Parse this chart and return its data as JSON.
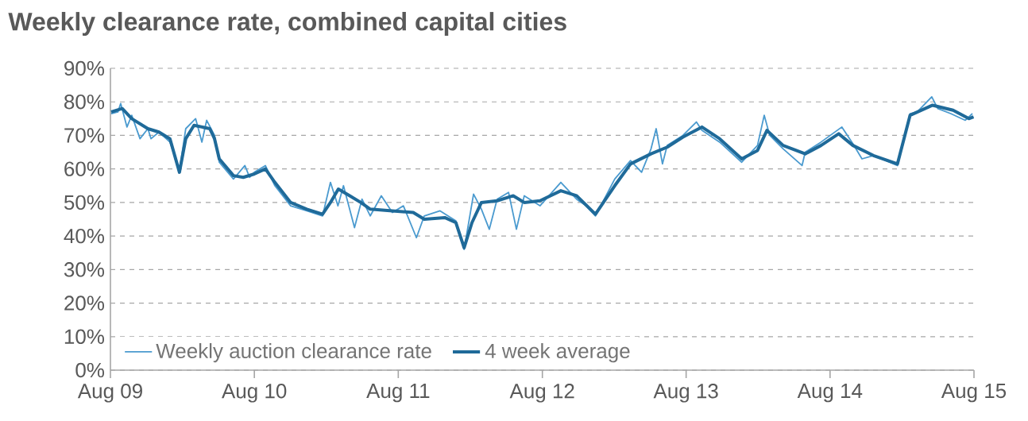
{
  "chart_data": {
    "type": "line",
    "title": "Weekly clearance rate, combined capital cities",
    "xlim": [
      "2009-08-01",
      "2015-08-01"
    ],
    "xticks": [
      {
        "value": "2009-08-01",
        "label": "Aug 09"
      },
      {
        "value": "2010-08-01",
        "label": "Aug 10"
      },
      {
        "value": "2011-08-01",
        "label": "Aug 11"
      },
      {
        "value": "2012-08-01",
        "label": "Aug 12"
      },
      {
        "value": "2013-08-01",
        "label": "Aug 13"
      },
      {
        "value": "2014-08-01",
        "label": "Aug 14"
      },
      {
        "value": "2015-08-01",
        "label": "Aug 15"
      }
    ],
    "ylim": [
      0,
      90
    ],
    "yticks": [
      {
        "value": 0,
        "label": "0%"
      },
      {
        "value": 10,
        "label": "10%"
      },
      {
        "value": 20,
        "label": "20%"
      },
      {
        "value": 30,
        "label": "30%"
      },
      {
        "value": 40,
        "label": "40%"
      },
      {
        "value": 50,
        "label": "50%"
      },
      {
        "value": 60,
        "label": "60%"
      },
      {
        "value": 70,
        "label": "70%"
      },
      {
        "value": 80,
        "label": "80%"
      },
      {
        "value": 90,
        "label": "90%"
      }
    ],
    "grid": "y",
    "legend": "bottom left",
    "line_style": "solid",
    "series": [
      {
        "name": "Weekly auction clearance rate",
        "color": "#4a9acf",
        "x": [
          "2009-08-03",
          "2009-08-20",
          "2009-08-27",
          "2009-09-12",
          "2009-09-24",
          "2009-10-15",
          "2009-11-04",
          "2009-11-12",
          "2009-12-02",
          "2009-12-30",
          "2010-01-23",
          "2010-02-08",
          "2010-03-05",
          "2010-03-21",
          "2010-04-02",
          "2010-04-22",
          "2010-05-04",
          "2010-06-09",
          "2010-07-08",
          "2010-07-20",
          "2010-08-01",
          "2010-08-29",
          "2010-09-22",
          "2010-11-01",
          "2010-12-12",
          "2011-01-21",
          "2011-02-10",
          "2011-03-01",
          "2011-03-15",
          "2011-04-12",
          "2011-05-01",
          "2011-05-22",
          "2011-06-19",
          "2011-07-17",
          "2011-08-14",
          "2011-09-16",
          "2011-10-06",
          "2011-11-15",
          "2011-12-25",
          "2012-01-15",
          "2012-02-08",
          "2012-02-28",
          "2012-03-19",
          "2012-04-08",
          "2012-05-07",
          "2012-05-27",
          "2012-06-16",
          "2012-07-26",
          "2012-09-17",
          "2012-10-27",
          "2012-11-20",
          "2012-12-14",
          "2013-02-01",
          "2013-03-13",
          "2013-04-10",
          "2013-05-04",
          "2013-05-17",
          "2013-06-02",
          "2013-06-14",
          "2013-07-24",
          "2013-08-27",
          "2013-09-10",
          "2013-10-25",
          "2013-12-20",
          "2014-01-29",
          "2014-02-15",
          "2014-03-01",
          "2014-04-04",
          "2014-05-22",
          "2014-05-30",
          "2014-07-09",
          "2014-08-31",
          "2014-09-28",
          "2014-10-21",
          "2014-11-19",
          "2015-01-19",
          "2015-02-20",
          "2015-03-10",
          "2015-04-16",
          "2015-05-01",
          "2015-06-03",
          "2015-07-10",
          "2015-07-28"
        ],
        "values": [
          76.5,
          77,
          79.5,
          72.5,
          76,
          69,
          72,
          69,
          71,
          68,
          59.5,
          72,
          75,
          68,
          74.5,
          70,
          62,
          57,
          61,
          57.5,
          59,
          61,
          55,
          49,
          47.5,
          46,
          56,
          49,
          55,
          42.5,
          51,
          46,
          52,
          47,
          49,
          39.5,
          46,
          47.5,
          44.5,
          36,
          52.5,
          48,
          42,
          51,
          53,
          42,
          52,
          49,
          56,
          51,
          49,
          46,
          57,
          62.5,
          59,
          66,
          72,
          61.5,
          67,
          70,
          74,
          71.5,
          68,
          62,
          67,
          76,
          70,
          66,
          61,
          65,
          68,
          72.5,
          67.5,
          63,
          64,
          61,
          76.5,
          77,
          81.5,
          78,
          76.5,
          74.5,
          76.5
        ]
      },
      {
        "name": "4 week average",
        "color": "#1f6a99",
        "x": [
          "2009-08-03",
          "2009-08-31",
          "2009-09-24",
          "2009-11-04",
          "2009-12-02",
          "2009-12-30",
          "2010-01-23",
          "2010-02-08",
          "2010-03-01",
          "2010-04-10",
          "2010-04-22",
          "2010-05-04",
          "2010-06-09",
          "2010-07-04",
          "2010-08-01",
          "2010-08-29",
          "2010-09-22",
          "2010-11-01",
          "2010-12-12",
          "2011-01-21",
          "2011-02-10",
          "2011-03-02",
          "2011-03-31",
          "2011-04-28",
          "2011-05-22",
          "2011-07-17",
          "2011-09-08",
          "2011-10-06",
          "2011-11-27",
          "2011-12-25",
          "2012-01-15",
          "2012-02-04",
          "2012-02-28",
          "2012-04-08",
          "2012-05-19",
          "2012-06-16",
          "2012-07-26",
          "2012-09-17",
          "2012-10-27",
          "2012-12-14",
          "2013-02-01",
          "2013-03-13",
          "2013-05-04",
          "2013-06-14",
          "2013-07-24",
          "2013-09-10",
          "2013-10-25",
          "2013-12-20",
          "2014-01-29",
          "2014-02-22",
          "2014-04-04",
          "2014-05-30",
          "2014-07-09",
          "2014-08-23",
          "2014-09-28",
          "2014-11-19",
          "2015-01-19",
          "2015-02-20",
          "2015-04-18",
          "2015-06-09",
          "2015-07-19",
          "2015-07-31"
        ],
        "values": [
          77,
          78,
          75,
          72,
          71,
          69,
          59,
          69,
          73,
          72,
          69,
          63,
          58,
          57.5,
          58.5,
          60,
          56,
          50,
          48,
          46.5,
          50,
          54,
          52,
          50,
          48,
          47.5,
          47,
          45,
          45.5,
          44,
          36.5,
          44,
          50,
          50.5,
          52,
          50,
          50.5,
          53.5,
          52,
          46.5,
          55,
          61.5,
          64.5,
          66.5,
          69.5,
          72.5,
          69,
          63,
          65.5,
          71.5,
          67,
          64.5,
          67,
          70.5,
          67,
          64,
          61.5,
          76,
          79,
          77.5,
          75,
          75.5
        ]
      }
    ]
  }
}
